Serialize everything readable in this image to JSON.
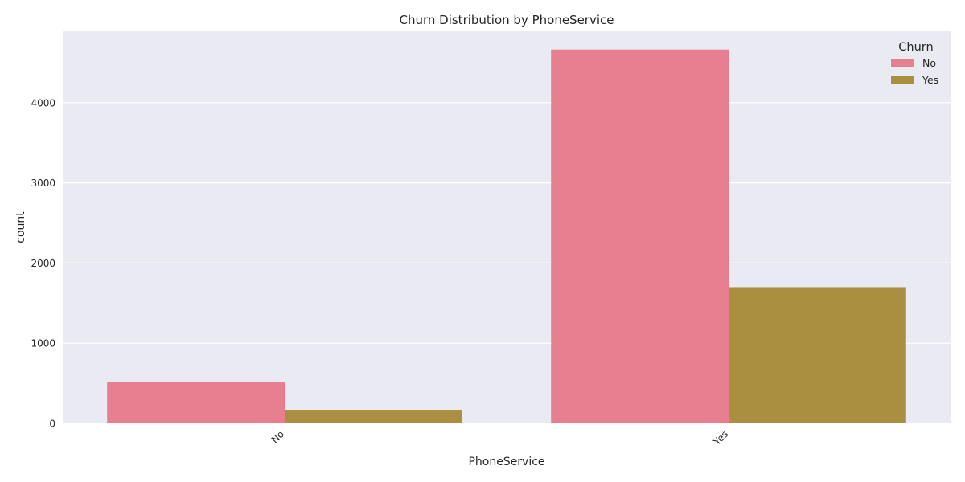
{
  "chart_data": {
    "type": "bar",
    "title": "Churn Distribution by PhoneService",
    "xlabel": "PhoneService",
    "ylabel": "count",
    "categories": [
      "No",
      "Yes"
    ],
    "series": [
      {
        "name": "No",
        "values": [
          512,
          4662
        ],
        "color": "#e77f91"
      },
      {
        "name": "Yes",
        "values": [
          170,
          1699
        ],
        "color": "#ab8f41"
      }
    ],
    "ylim": [
      0,
      4900
    ],
    "yticks": [
      0,
      1000,
      2000,
      3000,
      4000
    ],
    "ytick_labels": [
      "0",
      "1000",
      "2000",
      "3000",
      "4000"
    ],
    "x_tick_rotation": 45,
    "grid": true,
    "legend": {
      "title": "Churn",
      "position": "top-right"
    },
    "colors": {
      "plot_background": "#eaeaf2",
      "grid": "#ffffff",
      "text": "#262626"
    }
  }
}
